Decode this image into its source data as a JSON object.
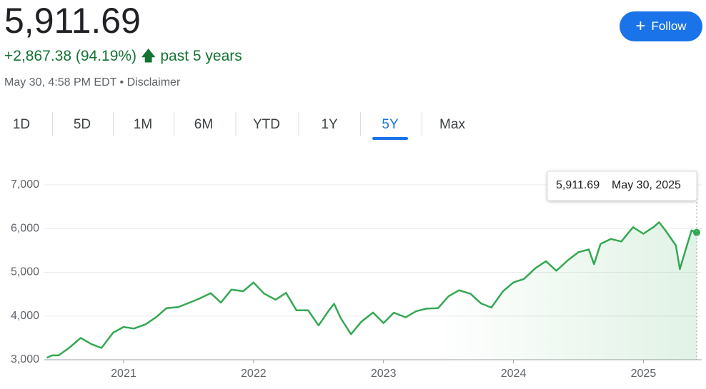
{
  "header": {
    "price": "5,911.69",
    "change": "+2,867.38 (94.19%)",
    "period": "past 5 years",
    "timestamp": "May 30, 4:58 PM EDT",
    "disclaimer": "Disclaimer"
  },
  "follow_button": "Follow",
  "tabs": [
    "1D",
    "5D",
    "1M",
    "6M",
    "YTD",
    "1Y",
    "5Y",
    "Max"
  ],
  "active_tab": 6,
  "tooltip": {
    "value": "5,911.69",
    "date": "May 30, 2025"
  },
  "chart_data": {
    "type": "line",
    "color": "#34a853",
    "grid": true,
    "x": [
      2020.41,
      2020.45,
      2020.5,
      2020.58,
      2020.67,
      2020.75,
      2020.83,
      2020.92,
      2021.0,
      2021.08,
      2021.17,
      2021.25,
      2021.33,
      2021.42,
      2021.5,
      2021.58,
      2021.67,
      2021.75,
      2021.83,
      2021.92,
      2022.0,
      2022.08,
      2022.17,
      2022.25,
      2022.33,
      2022.42,
      2022.5,
      2022.58,
      2022.62,
      2022.67,
      2022.75,
      2022.83,
      2022.92,
      2023.0,
      2023.08,
      2023.17,
      2023.25,
      2023.33,
      2023.42,
      2023.5,
      2023.58,
      2023.67,
      2023.75,
      2023.83,
      2023.92,
      2024.0,
      2024.08,
      2024.17,
      2024.25,
      2024.33,
      2024.42,
      2024.5,
      2024.58,
      2024.62,
      2024.67,
      2024.75,
      2024.83,
      2024.92,
      2025.0,
      2025.08,
      2025.12,
      2025.17,
      2025.25,
      2025.28,
      2025.33,
      2025.37,
      2025.41
    ],
    "values": [
      3044,
      3100,
      3100,
      3270,
      3500,
      3360,
      3270,
      3620,
      3750,
      3714,
      3811,
      3973,
      4181,
      4204,
      4298,
      4395,
      4523,
      4307,
      4605,
      4567,
      4766,
      4515,
      4373,
      4530,
      4131,
      4132,
      3785,
      4130,
      4280,
      3955,
      3585,
      3872,
      4080,
      3840,
      4077,
      3970,
      4109,
      4169,
      4180,
      4450,
      4589,
      4508,
      4288,
      4194,
      4568,
      4770,
      4846,
      5096,
      5254,
      5036,
      5278,
      5460,
      5522,
      5186,
      5648,
      5762,
      5705,
      6032,
      5882,
      6040,
      6144,
      5955,
      5612,
      5074,
      5569,
      5958,
      5911.69
    ],
    "xlim": [
      2020.39,
      2025.41
    ],
    "xticks": [
      2021,
      2022,
      2023,
      2024,
      2025
    ],
    "ylim": [
      3000,
      7000
    ],
    "yticks": [
      {
        "value": 3000,
        "label": "3,000"
      },
      {
        "value": 4000,
        "label": "4,000"
      },
      {
        "value": 5000,
        "label": "5,000"
      },
      {
        "value": 6000,
        "label": "6,000"
      },
      {
        "value": 7000,
        "label": "7,000"
      }
    ]
  }
}
